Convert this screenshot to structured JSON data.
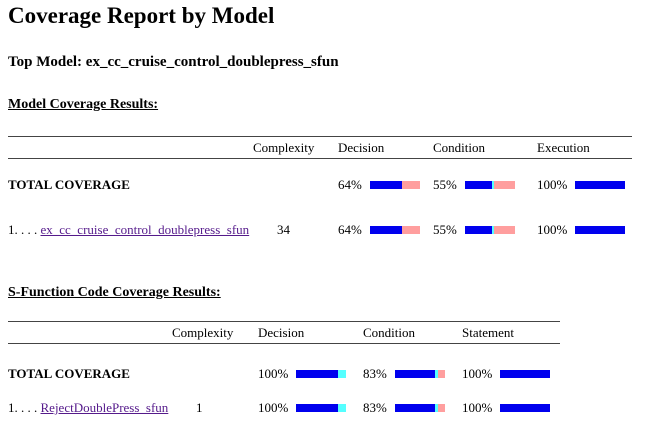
{
  "page": {
    "title": "Coverage Report by Model",
    "top_model": {
      "label": "Top Model:",
      "value": "ex_cc_cruise_control_doublepress_sfun"
    }
  },
  "colors": {
    "covered": "#0000ee",
    "uncovered": "#ff9e9e",
    "justified": "#55ffff",
    "link": "#551a8b"
  },
  "model_coverage": {
    "heading": "Model Coverage Results:",
    "columns": {
      "complexity": "Complexity",
      "decision": "Decision",
      "condition": "Condition",
      "execution": "Execution"
    },
    "rows": [
      {
        "label": "TOTAL COVERAGE",
        "complexity": "",
        "metrics": {
          "decision": {
            "pct": "64%",
            "value": 64,
            "segments": [
              [
                "covered",
                32
              ],
              [
                "uncovered",
                18
              ]
            ]
          },
          "condition": {
            "pct": "55%",
            "value": 55,
            "segments": [
              [
                "covered",
                27
              ],
              [
                "justified",
                2
              ],
              [
                "uncovered",
                21
              ]
            ]
          },
          "execution": {
            "pct": "100%",
            "value": 100,
            "segments": [
              [
                "covered",
                50
              ]
            ]
          }
        }
      },
      {
        "prefix": "1. . . . ",
        "link": "ex_cc_cruise_control_doublepress_sfun",
        "complexity": "34",
        "metrics": {
          "decision": {
            "pct": "64%",
            "value": 64,
            "segments": [
              [
                "covered",
                32
              ],
              [
                "uncovered",
                18
              ]
            ]
          },
          "condition": {
            "pct": "55%",
            "value": 55,
            "segments": [
              [
                "covered",
                27
              ],
              [
                "justified",
                2
              ],
              [
                "uncovered",
                21
              ]
            ]
          },
          "execution": {
            "pct": "100%",
            "value": 100,
            "segments": [
              [
                "covered",
                50
              ]
            ]
          }
        }
      }
    ]
  },
  "sfunction_coverage": {
    "heading": "S-Function Code Coverage Results:",
    "columns": {
      "complexity": "Complexity",
      "decision": "Decision",
      "condition": "Condition",
      "statement": "Statement"
    },
    "rows": [
      {
        "label": "TOTAL COVERAGE",
        "complexity": "",
        "metrics": {
          "decision": {
            "pct": "100%",
            "value": 100,
            "segments": [
              [
                "covered",
                42
              ],
              [
                "justified",
                8
              ]
            ]
          },
          "condition": {
            "pct": "83%",
            "value": 83,
            "segments": [
              [
                "covered",
                40
              ],
              [
                "justified",
                3
              ],
              [
                "uncovered",
                7
              ]
            ]
          },
          "statement": {
            "pct": "100%",
            "value": 100,
            "segments": [
              [
                "covered",
                50
              ]
            ]
          }
        }
      },
      {
        "prefix": "1. . . . ",
        "link": "RejectDoublePress_sfun",
        "complexity": "1",
        "metrics": {
          "decision": {
            "pct": "100%",
            "value": 100,
            "segments": [
              [
                "covered",
                42
              ],
              [
                "justified",
                8
              ]
            ]
          },
          "condition": {
            "pct": "83%",
            "value": 83,
            "segments": [
              [
                "covered",
                40
              ],
              [
                "justified",
                3
              ],
              [
                "uncovered",
                7
              ]
            ]
          },
          "statement": {
            "pct": "100%",
            "value": 100,
            "segments": [
              [
                "covered",
                50
              ]
            ]
          }
        }
      }
    ]
  }
}
